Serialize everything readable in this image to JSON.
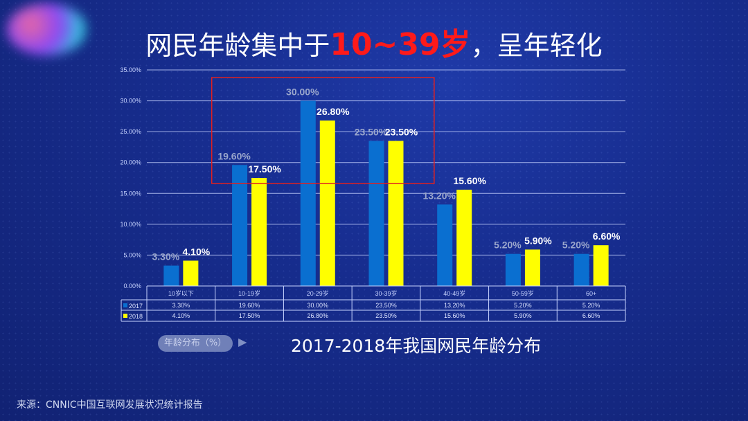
{
  "slide": {
    "title_pre": "网民年龄集中于",
    "title_highlight": "10~39岁",
    "title_post": "，呈年轻化",
    "subtitle": "2017-2018年我国网民年龄分布",
    "badge": "年龄分布（%）",
    "source": "来源：CNNIC中国互联网发展状况统计报告"
  },
  "chart_data": {
    "type": "bar",
    "categories": [
      "10岁以下",
      "10-19岁",
      "20-29岁",
      "30-39岁",
      "40-49岁",
      "50-59岁",
      "60+"
    ],
    "series": [
      {
        "name": "2017",
        "values": [
          3.3,
          19.6,
          30.0,
          23.5,
          13.2,
          5.2,
          5.2
        ],
        "color": "#0a6fd0"
      },
      {
        "name": "2018",
        "values": [
          4.1,
          17.5,
          26.8,
          23.5,
          15.6,
          5.9,
          6.6
        ],
        "color": "#ffff00"
      }
    ],
    "ylim": [
      0,
      35
    ],
    "yticks": [
      "0.00%",
      "5.00%",
      "10.00%",
      "15.00%",
      "20.00%",
      "25.00%",
      "30.00%",
      "35.00%"
    ],
    "grid": true,
    "legend": "data-table",
    "highlight_categories": [
      "10-19岁",
      "20-29岁",
      "30-39岁"
    ],
    "highlight_color": "#e02020"
  }
}
